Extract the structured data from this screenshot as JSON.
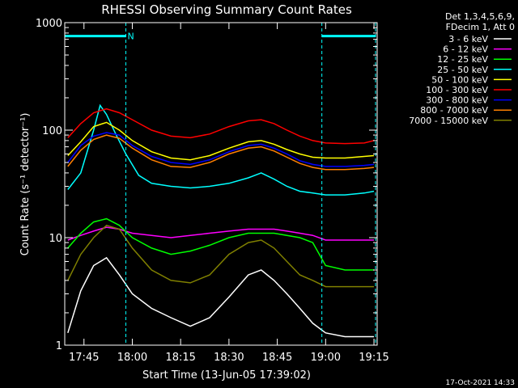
{
  "chart_data": {
    "type": "line",
    "title": "RHESSI Observing Summary Count Rates",
    "xlabel": "Start Time (13-Jun-05 17:39:02)",
    "ylabel": "Count Rate (s⁻¹ detector⁻¹)",
    "y_scale": "log",
    "ylim": [
      1,
      1000
    ],
    "xlim": [
      "17:39:02",
      "19:16:00"
    ],
    "x_ticks": [
      "17:45",
      "18:00",
      "18:15",
      "18:30",
      "18:45",
      "19:00",
      "19:15"
    ],
    "y_ticks": [
      "1",
      "10",
      "100",
      "1000"
    ],
    "legend_header": [
      "Det 1,3,4,5,6,9,",
      "FDecim 1, Att 0"
    ],
    "legend_position": "right",
    "footer_date": "17-Oct-2021 14:33",
    "annotations": [
      {
        "text": "N",
        "x": "17:58:30",
        "color": "#00ffff"
      }
    ],
    "night_bars": [
      {
        "x_start": "17:39:02",
        "x_end": "17:58:00",
        "y": 750
      },
      {
        "x_start": "18:58:50",
        "x_end": "19:15:30",
        "y": 750
      }
    ],
    "vertical_markers": [
      "17:58:00",
      "18:58:50",
      "19:15:30"
    ],
    "series": [
      {
        "name": "3 - 6 keV",
        "color": "#ffffff",
        "x": [
          "17:40",
          "17:44",
          "17:48",
          "17:52",
          "17:56",
          "18:00",
          "18:06",
          "18:12",
          "18:18",
          "18:24",
          "18:30",
          "18:36",
          "18:40",
          "18:44",
          "18:48",
          "18:52",
          "18:56",
          "19:00",
          "19:06",
          "19:12",
          "19:15"
        ],
        "values": [
          1.3,
          3.2,
          5.5,
          6.5,
          4.5,
          3,
          2.2,
          1.8,
          1.5,
          1.8,
          2.8,
          4.5,
          5,
          4,
          3,
          2.2,
          1.6,
          1.3,
          1.2,
          1.2,
          1.2
        ]
      },
      {
        "name": "6 - 12 keV",
        "color": "#ff00ff",
        "x": [
          "17:40",
          "17:44",
          "17:48",
          "17:52",
          "17:56",
          "18:00",
          "18:06",
          "18:12",
          "18:18",
          "18:24",
          "18:30",
          "18:36",
          "18:40",
          "18:44",
          "18:48",
          "18:52",
          "18:56",
          "19:00",
          "19:06",
          "19:12",
          "19:15"
        ],
        "values": [
          9.5,
          10.5,
          11.5,
          12.5,
          12,
          11,
          10.5,
          10,
          10.5,
          11,
          11.5,
          12,
          12,
          12,
          11.5,
          11,
          10.5,
          9.5,
          9.5,
          9.5,
          9.5
        ]
      },
      {
        "name": "12 - 25 keV",
        "color": "#00ff00",
        "x": [
          "17:40",
          "17:44",
          "17:48",
          "17:52",
          "17:56",
          "18:00",
          "18:06",
          "18:12",
          "18:18",
          "18:24",
          "18:30",
          "18:36",
          "18:40",
          "18:44",
          "18:48",
          "18:52",
          "18:56",
          "19:00",
          "19:06",
          "19:12",
          "19:15"
        ],
        "values": [
          8,
          11,
          14,
          15,
          13,
          10,
          8,
          7,
          7.5,
          8.5,
          10,
          11,
          11,
          11,
          10.5,
          10,
          9,
          5.5,
          5,
          5,
          5
        ]
      },
      {
        "name": "25 - 50 keV",
        "color": "#00ffff",
        "x": [
          "17:40",
          "17:44",
          "17:48",
          "17:50",
          "17:52",
          "17:55",
          "17:58",
          "18:02",
          "18:06",
          "18:12",
          "18:18",
          "18:24",
          "18:30",
          "18:36",
          "18:40",
          "18:44",
          "18:48",
          "18:52",
          "18:56",
          "19:00",
          "19:06",
          "19:12",
          "19:15"
        ],
        "values": [
          28,
          40,
          100,
          170,
          140,
          90,
          60,
          38,
          32,
          30,
          29,
          30,
          32,
          36,
          40,
          35,
          30,
          27,
          26,
          25,
          25,
          26,
          27
        ]
      },
      {
        "name": "50 - 100 keV",
        "color": "#ffff00",
        "x": [
          "17:40",
          "17:44",
          "17:48",
          "17:52",
          "17:56",
          "18:00",
          "18:06",
          "18:12",
          "18:18",
          "18:24",
          "18:30",
          "18:36",
          "18:40",
          "18:44",
          "18:48",
          "18:52",
          "18:56",
          "19:00",
          "19:06",
          "19:12",
          "19:15"
        ],
        "values": [
          58,
          78,
          108,
          118,
          100,
          80,
          63,
          55,
          53,
          58,
          68,
          78,
          80,
          74,
          66,
          60,
          56,
          55,
          55,
          57,
          58
        ]
      },
      {
        "name": "100 - 300 keV",
        "color": "#ff0000",
        "x": [
          "17:40",
          "17:44",
          "17:48",
          "17:52",
          "17:56",
          "18:00",
          "18:06",
          "18:12",
          "18:18",
          "18:24",
          "18:30",
          "18:36",
          "18:40",
          "18:44",
          "18:48",
          "18:52",
          "18:56",
          "19:00",
          "19:06",
          "19:12",
          "19:15"
        ],
        "values": [
          85,
          115,
          145,
          158,
          145,
          125,
          100,
          88,
          85,
          92,
          108,
          122,
          125,
          115,
          100,
          88,
          80,
          76,
          75,
          76,
          80
        ]
      },
      {
        "name": "300 - 800 keV",
        "color": "#0000ff",
        "x": [
          "17:40",
          "17:44",
          "17:48",
          "17:52",
          "17:56",
          "18:00",
          "18:06",
          "18:12",
          "18:18",
          "18:24",
          "18:30",
          "18:36",
          "18:40",
          "18:44",
          "18:48",
          "18:52",
          "18:56",
          "19:00",
          "19:06",
          "19:12",
          "19:15"
        ],
        "values": [
          50,
          72,
          88,
          95,
          90,
          72,
          57,
          50,
          48,
          53,
          63,
          72,
          74,
          68,
          60,
          52,
          48,
          46,
          46,
          47,
          48
        ]
      },
      {
        "name": "800 - 7000 keV",
        "color": "#ff8000",
        "x": [
          "17:40",
          "17:44",
          "17:48",
          "17:52",
          "17:56",
          "18:00",
          "18:06",
          "18:12",
          "18:18",
          "18:24",
          "18:30",
          "18:36",
          "18:40",
          "18:44",
          "18:48",
          "18:52",
          "18:56",
          "19:00",
          "19:06",
          "19:12",
          "19:15"
        ],
        "values": [
          46,
          65,
          82,
          90,
          84,
          68,
          53,
          46,
          45,
          50,
          60,
          68,
          70,
          64,
          56,
          49,
          45,
          43,
          43,
          44,
          45
        ]
      },
      {
        "name": "7000 - 15000 keV",
        "color": "#808000",
        "x": [
          "17:40",
          "17:44",
          "17:48",
          "17:52",
          "17:56",
          "18:00",
          "18:06",
          "18:12",
          "18:18",
          "18:24",
          "18:30",
          "18:36",
          "18:40",
          "18:44",
          "18:48",
          "18:52",
          "18:56",
          "19:00",
          "19:06",
          "19:12",
          "19:15"
        ],
        "values": [
          4,
          7,
          10,
          13,
          12,
          8,
          5,
          4,
          3.8,
          4.5,
          7,
          9,
          9.5,
          8,
          6,
          4.5,
          4,
          3.5,
          3.5,
          3.5,
          3.5
        ]
      }
    ]
  }
}
